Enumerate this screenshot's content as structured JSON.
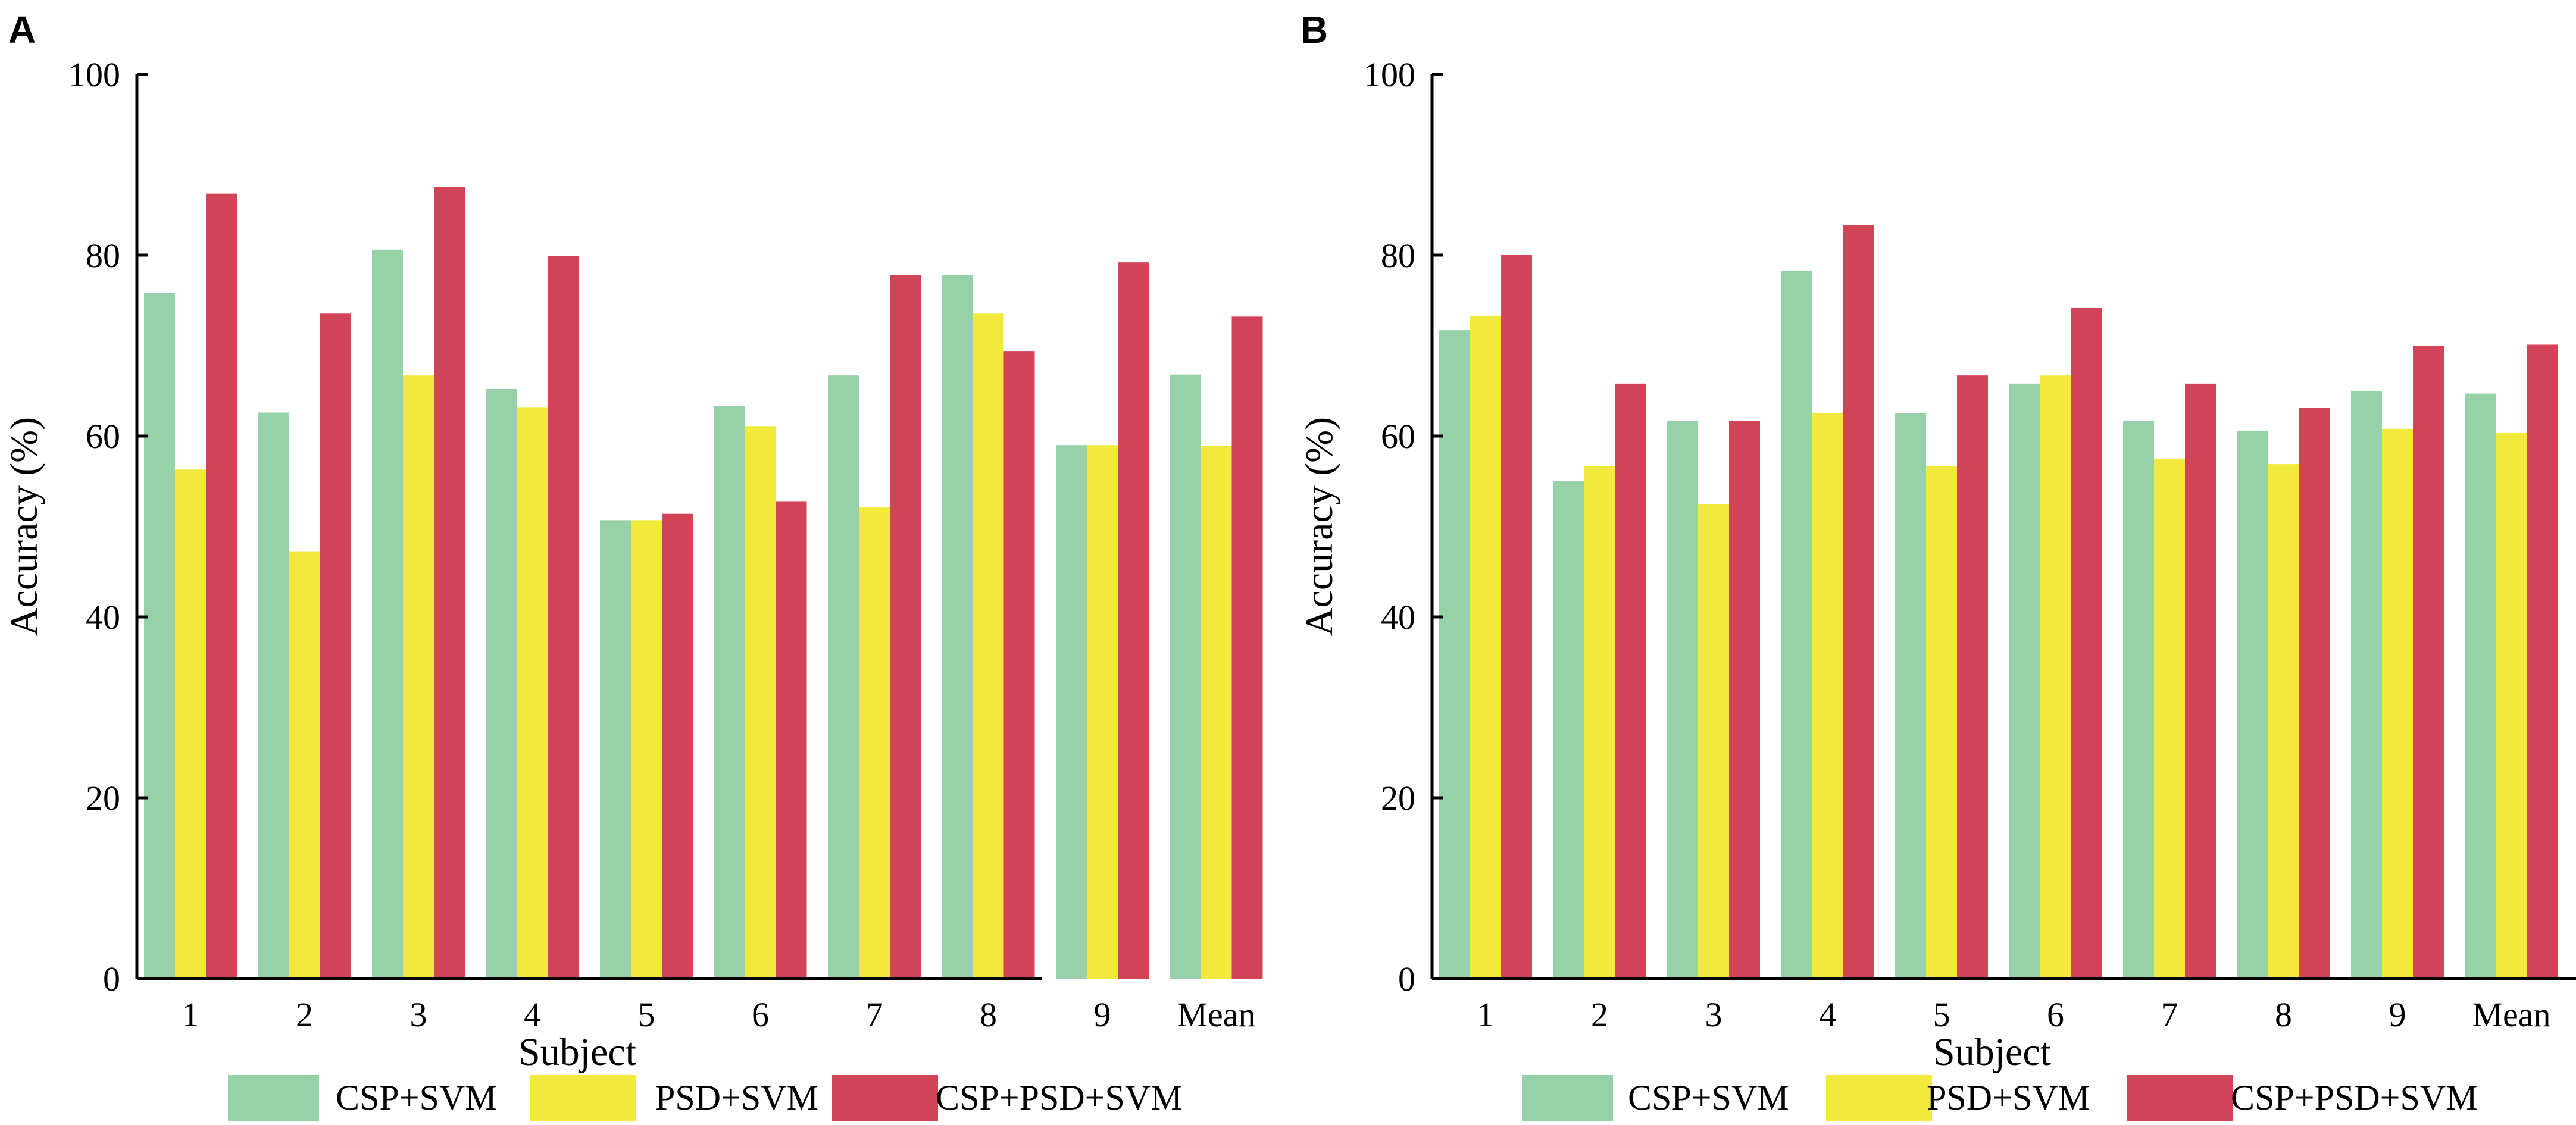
{
  "chart_data": [
    {
      "panel": "A",
      "type": "bar",
      "categories": [
        "1",
        "2",
        "3",
        "4",
        "5",
        "6",
        "7",
        "8",
        "9",
        "Mean"
      ],
      "series": [
        {
          "name": "CSP+SVM",
          "color": "#96d1a7",
          "values": [
            75.8,
            62.6,
            80.6,
            65.2,
            50.7,
            63.3,
            66.7,
            77.8,
            59.0,
            66.8
          ]
        },
        {
          "name": "PSD+SVM",
          "color": "#f2e93d",
          "values": [
            56.3,
            47.2,
            66.7,
            63.2,
            50.7,
            61.1,
            52.1,
            73.6,
            59.0,
            58.9
          ]
        },
        {
          "name": "CSP+PSD+SVM",
          "color": "#d14357",
          "values": [
            86.8,
            73.6,
            87.5,
            79.9,
            51.4,
            52.8,
            77.8,
            69.4,
            79.2,
            73.2
          ]
        }
      ],
      "title": "",
      "xlabel": "Subject",
      "ylabel": "Accuracy (%)",
      "ylim": [
        0,
        100
      ],
      "yticks": [
        "0",
        "20",
        "40",
        "60",
        "80",
        "100"
      ]
    },
    {
      "panel": "B",
      "type": "bar",
      "categories": [
        "1",
        "2",
        "3",
        "4",
        "5",
        "6",
        "7",
        "8",
        "9",
        "Mean"
      ],
      "series": [
        {
          "name": "CSP+SVM",
          "color": "#96d1a7",
          "values": [
            71.7,
            55.0,
            61.7,
            78.3,
            62.5,
            65.8,
            61.7,
            60.6,
            65.0,
            64.7
          ]
        },
        {
          "name": "PSD+SVM",
          "color": "#f2e93d",
          "values": [
            73.3,
            56.7,
            52.5,
            62.5,
            56.7,
            66.7,
            57.5,
            56.9,
            60.8,
            60.4
          ]
        },
        {
          "name": "CSP+PSD+SVM",
          "color": "#d14357",
          "values": [
            80.0,
            65.8,
            61.7,
            83.3,
            66.7,
            74.2,
            65.8,
            63.1,
            70.0,
            70.1
          ]
        }
      ],
      "title": "",
      "xlabel": "Subject",
      "ylabel": "Accuracy (%)",
      "ylim": [
        0,
        100
      ],
      "yticks": [
        "0",
        "20",
        "40",
        "60",
        "80",
        "100"
      ]
    }
  ]
}
